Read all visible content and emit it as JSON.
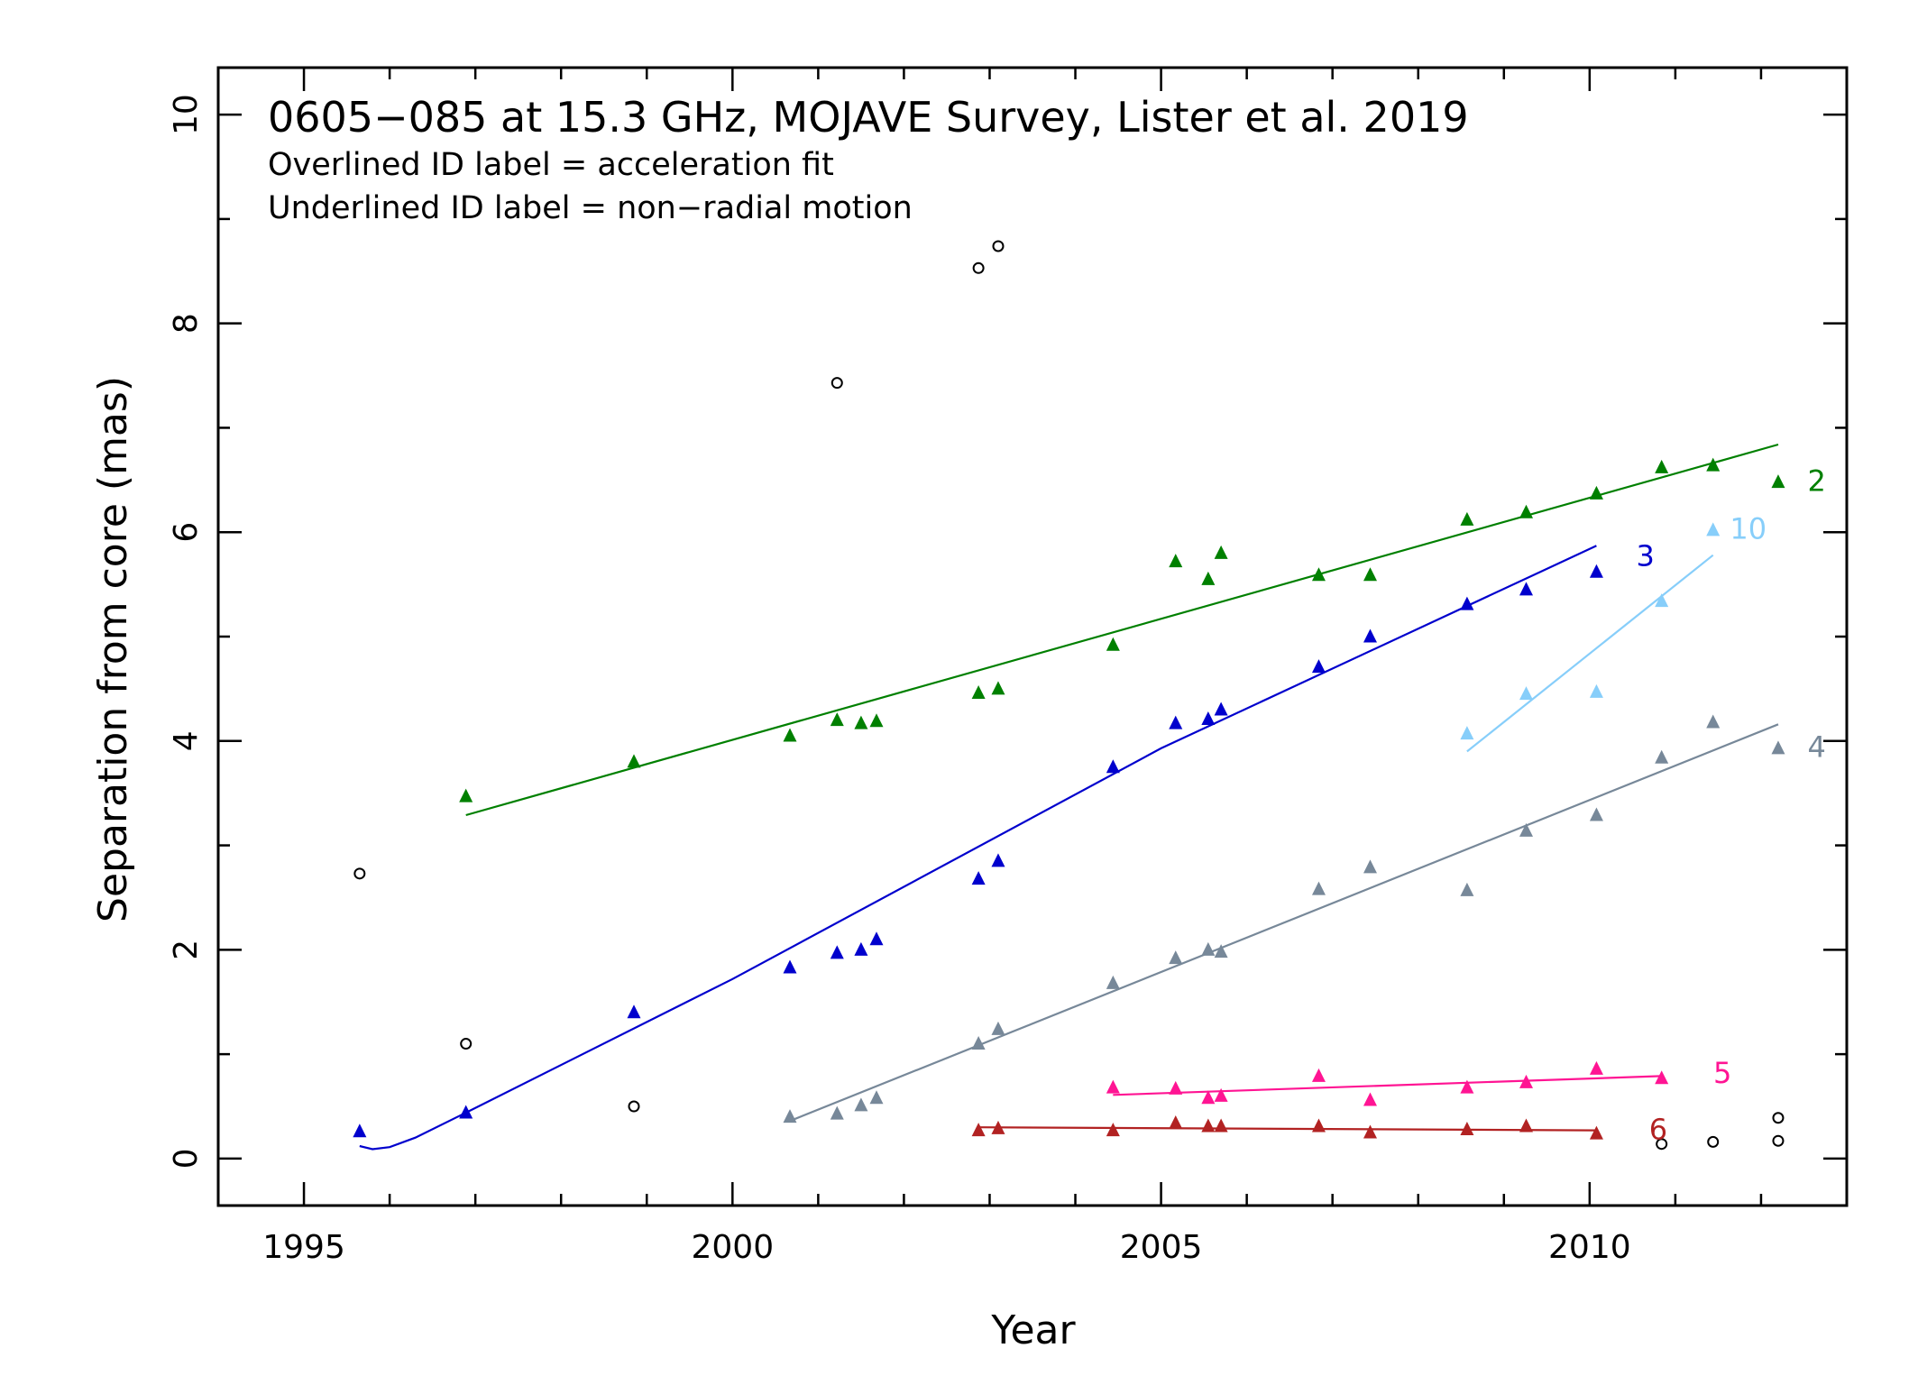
{
  "chart_data": {
    "type": "scatter",
    "title": "0605−085 at 15.3 GHz, MOJAVE Survey, Lister et al. 2019",
    "annotations": [
      "Overlined ID label = acceleration fit",
      "Underlined ID label = non−radial motion"
    ],
    "xlabel": "Year",
    "ylabel": "Separation from core (mas)",
    "xlim": [
      1994.0,
      2013.0
    ],
    "ylim": [
      -0.45,
      10.45
    ],
    "x_ticks": [
      1995,
      2000,
      2005,
      2010
    ],
    "x_tick_labels": [
      "1995",
      "2000",
      "2005",
      "2010"
    ],
    "y_ticks": [
      0,
      2,
      4,
      6,
      8,
      10
    ],
    "y_tick_labels": [
      "0",
      "2",
      "4",
      "6",
      "8",
      "10"
    ],
    "grid": false,
    "legend": "none",
    "series": [
      {
        "name": "2",
        "color": "#008000",
        "marker": "triangle",
        "points": [
          [
            1996.89,
            3.47
          ],
          [
            1998.85,
            3.8
          ],
          [
            2000.67,
            4.05
          ],
          [
            2001.22,
            4.2
          ],
          [
            2001.5,
            4.17
          ],
          [
            2001.68,
            4.19
          ],
          [
            2002.87,
            4.46
          ],
          [
            2003.1,
            4.5
          ],
          [
            2004.44,
            4.92
          ],
          [
            2005.17,
            5.72
          ],
          [
            2005.55,
            5.55
          ],
          [
            2005.7,
            5.8
          ],
          [
            2006.84,
            5.59
          ],
          [
            2007.44,
            5.59
          ],
          [
            2008.57,
            6.12
          ],
          [
            2009.26,
            6.19
          ],
          [
            2010.08,
            6.37
          ],
          [
            2010.84,
            6.62
          ],
          [
            2011.44,
            6.64
          ],
          [
            2012.2,
            6.48
          ]
        ],
        "fit": {
          "kind": "linear",
          "points": [
            [
              1996.89,
              3.29
            ],
            [
              2012.2,
              6.84
            ]
          ]
        }
      },
      {
        "name": "3",
        "color": "#0000cd",
        "marker": "triangle",
        "points": [
          [
            1995.65,
            0.26
          ],
          [
            1996.89,
            0.44
          ],
          [
            1998.85,
            1.4
          ],
          [
            2000.67,
            1.83
          ],
          [
            2001.22,
            1.97
          ],
          [
            2001.5,
            2.0
          ],
          [
            2001.68,
            2.1
          ],
          [
            2002.87,
            2.68
          ],
          [
            2003.1,
            2.85
          ],
          [
            2004.44,
            3.75
          ],
          [
            2005.17,
            4.17
          ],
          [
            2005.55,
            4.21
          ],
          [
            2005.7,
            4.3
          ],
          [
            2006.84,
            4.71
          ],
          [
            2007.44,
            5.0
          ],
          [
            2008.57,
            5.31
          ],
          [
            2009.26,
            5.45
          ],
          [
            2010.08,
            5.62
          ]
        ],
        "fit": {
          "kind": "curve",
          "points": [
            [
              1995.65,
              0.12
            ],
            [
              1995.8,
              0.09
            ],
            [
              1996.0,
              0.11
            ],
            [
              1996.3,
              0.2
            ],
            [
              1996.89,
              0.44
            ],
            [
              2000.0,
              1.72
            ],
            [
              2005.0,
              3.93
            ],
            [
              2010.08,
              5.87
            ]
          ]
        }
      },
      {
        "name": "10",
        "color": "#87cefa",
        "marker": "triangle",
        "points": [
          [
            2008.57,
            4.07
          ],
          [
            2009.26,
            4.45
          ],
          [
            2010.08,
            4.47
          ],
          [
            2010.84,
            5.34
          ],
          [
            2011.44,
            6.02
          ]
        ],
        "fit": {
          "kind": "linear",
          "points": [
            [
              2008.57,
              3.9
            ],
            [
              2011.44,
              5.78
            ]
          ]
        }
      },
      {
        "name": "4",
        "color": "#778899",
        "marker": "triangle",
        "points": [
          [
            2000.67,
            0.4
          ],
          [
            2001.22,
            0.43
          ],
          [
            2001.5,
            0.51
          ],
          [
            2001.68,
            0.58
          ],
          [
            2002.87,
            1.1
          ],
          [
            2003.1,
            1.24
          ],
          [
            2004.44,
            1.68
          ],
          [
            2005.17,
            1.92
          ],
          [
            2005.55,
            2.0
          ],
          [
            2005.7,
            1.98
          ],
          [
            2006.84,
            2.58
          ],
          [
            2007.44,
            2.79
          ],
          [
            2008.57,
            2.57
          ],
          [
            2009.26,
            3.14
          ],
          [
            2010.08,
            3.29
          ],
          [
            2010.84,
            3.84
          ],
          [
            2011.44,
            4.18
          ],
          [
            2012.2,
            3.93
          ]
        ],
        "fit": {
          "kind": "linear",
          "points": [
            [
              2000.67,
              0.36
            ],
            [
              2012.2,
              4.16
            ]
          ]
        }
      },
      {
        "name": "5",
        "color": "#ff1493",
        "marker": "triangle",
        "points": [
          [
            2004.44,
            0.68
          ],
          [
            2005.17,
            0.67
          ],
          [
            2005.55,
            0.58
          ],
          [
            2005.7,
            0.6
          ],
          [
            2006.84,
            0.79
          ],
          [
            2007.44,
            0.56
          ],
          [
            2008.57,
            0.68
          ],
          [
            2009.26,
            0.73
          ],
          [
            2010.08,
            0.86
          ],
          [
            2010.84,
            0.77
          ]
        ],
        "fit": {
          "kind": "linear",
          "points": [
            [
              2004.44,
              0.61
            ],
            [
              2010.84,
              0.79
            ]
          ]
        }
      },
      {
        "name": "6",
        "color": "#b22222",
        "marker": "triangle",
        "points": [
          [
            2002.87,
            0.27
          ],
          [
            2003.1,
            0.29
          ],
          [
            2004.44,
            0.27
          ],
          [
            2005.17,
            0.34
          ],
          [
            2005.55,
            0.31
          ],
          [
            2005.7,
            0.31
          ],
          [
            2006.84,
            0.31
          ],
          [
            2007.44,
            0.25
          ],
          [
            2008.57,
            0.28
          ],
          [
            2009.26,
            0.31
          ],
          [
            2010.08,
            0.24
          ]
        ],
        "fit": {
          "kind": "linear",
          "points": [
            [
              2002.87,
              0.3
            ],
            [
              2010.08,
              0.27
            ]
          ]
        }
      },
      {
        "name": "",
        "color": "#000000",
        "marker": "open-circle",
        "points": [
          [
            1995.65,
            2.73
          ],
          [
            1996.89,
            1.1
          ],
          [
            1998.85,
            0.5
          ],
          [
            2001.22,
            7.43
          ],
          [
            2002.87,
            8.53
          ],
          [
            2003.1,
            8.74
          ],
          [
            2010.84,
            0.14
          ],
          [
            2011.44,
            0.16
          ],
          [
            2012.2,
            0.17
          ],
          [
            2012.2,
            0.39
          ]
        ]
      }
    ],
    "series_labels": [
      {
        "text": "2",
        "series": "2",
        "x": 2012.65,
        "y": 6.5
      },
      {
        "text": "3",
        "series": "3",
        "x": 2010.65,
        "y": 5.78
      },
      {
        "text": "10",
        "series": "10",
        "x": 2011.85,
        "y": 6.04
      },
      {
        "text": "4",
        "series": "4",
        "x": 2012.65,
        "y": 3.95
      },
      {
        "text": "5",
        "series": "5",
        "x": 2011.55,
        "y": 0.83
      },
      {
        "text": "6",
        "series": "6",
        "x": 2010.8,
        "y": 0.29
      }
    ]
  }
}
